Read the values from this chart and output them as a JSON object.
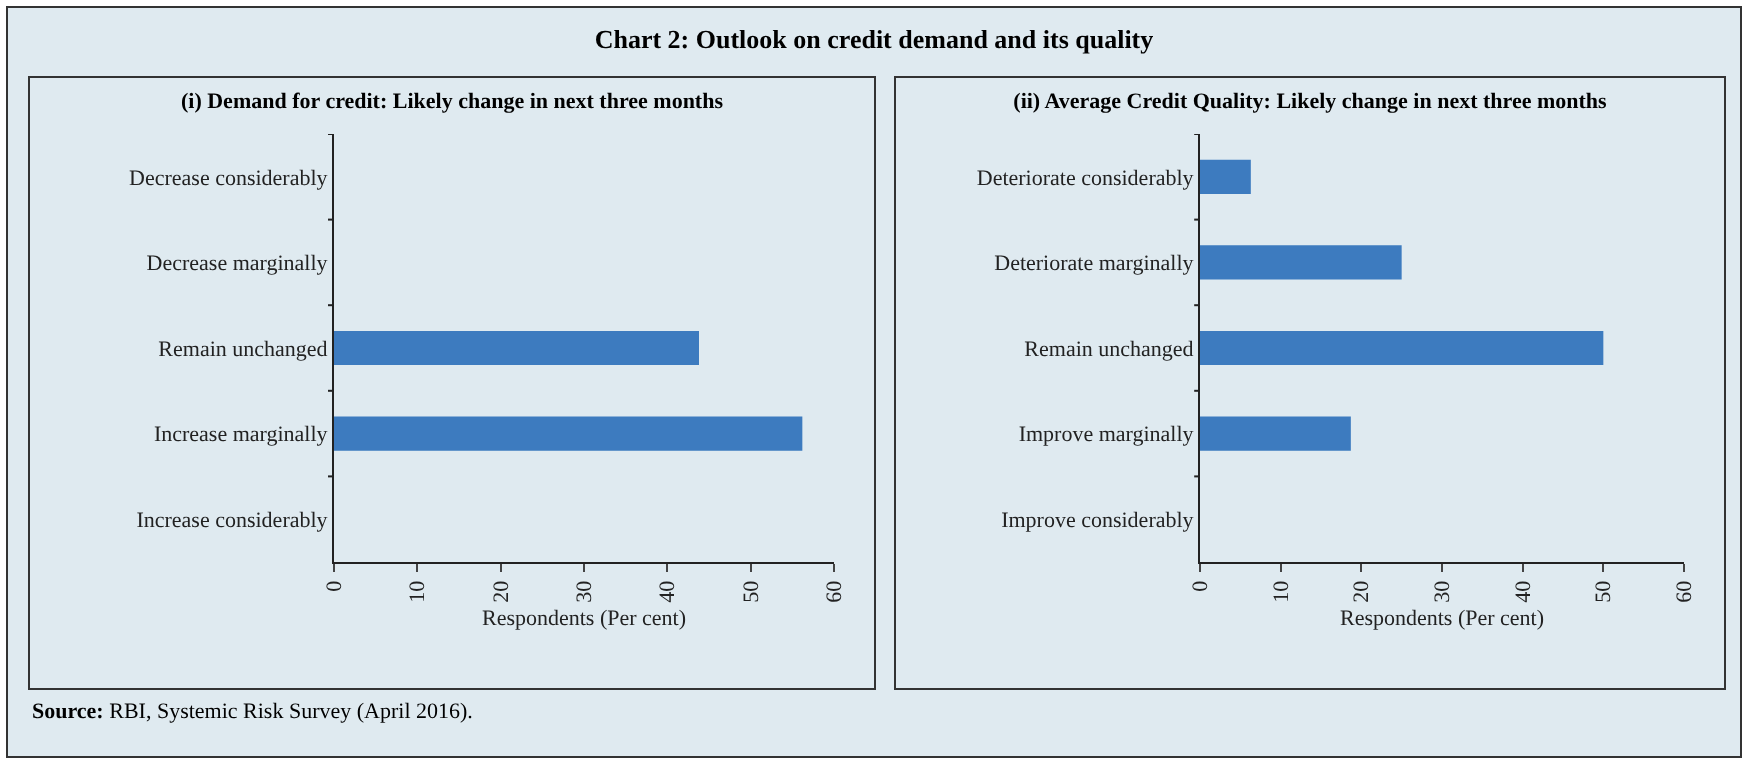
{
  "chart_data": [
    {
      "type": "bar",
      "orientation": "horizontal",
      "title": "Chart 2: Outlook on credit demand and its quality",
      "subtitle": "(i) Demand for credit: Likely change in next three months",
      "categories": [
        "Decrease considerably",
        "Decrease marginally",
        "Remain unchanged",
        "Increase marginally",
        "Increase considerably"
      ],
      "values": [
        0,
        0,
        43.8,
        56.2,
        0
      ],
      "color": "#3d7bbf",
      "xlabel": "Respondents (Per cent)",
      "xlim": [
        0,
        60
      ],
      "xticks": [
        0,
        10,
        20,
        30,
        40,
        50,
        60
      ],
      "grid": false,
      "legend": false,
      "annotations": [
        "Source: RBI, Systemic Risk Survey (April 2016)."
      ]
    },
    {
      "type": "bar",
      "orientation": "horizontal",
      "subtitle": "(ii) Average Credit Quality: Likely change in next three months",
      "categories": [
        "Deteriorate considerably",
        "Deteriorate marginally",
        "Remain unchanged",
        "Improve marginally",
        "Improve considerably"
      ],
      "values": [
        6.3,
        25,
        50,
        18.7,
        0
      ],
      "color": "#3d7bbf",
      "xlabel": "Respondents (Per cent)",
      "xlim": [
        0,
        60
      ],
      "xticks": [
        0,
        10,
        20,
        30,
        40,
        50,
        60
      ],
      "grid": false,
      "legend": false
    }
  ]
}
